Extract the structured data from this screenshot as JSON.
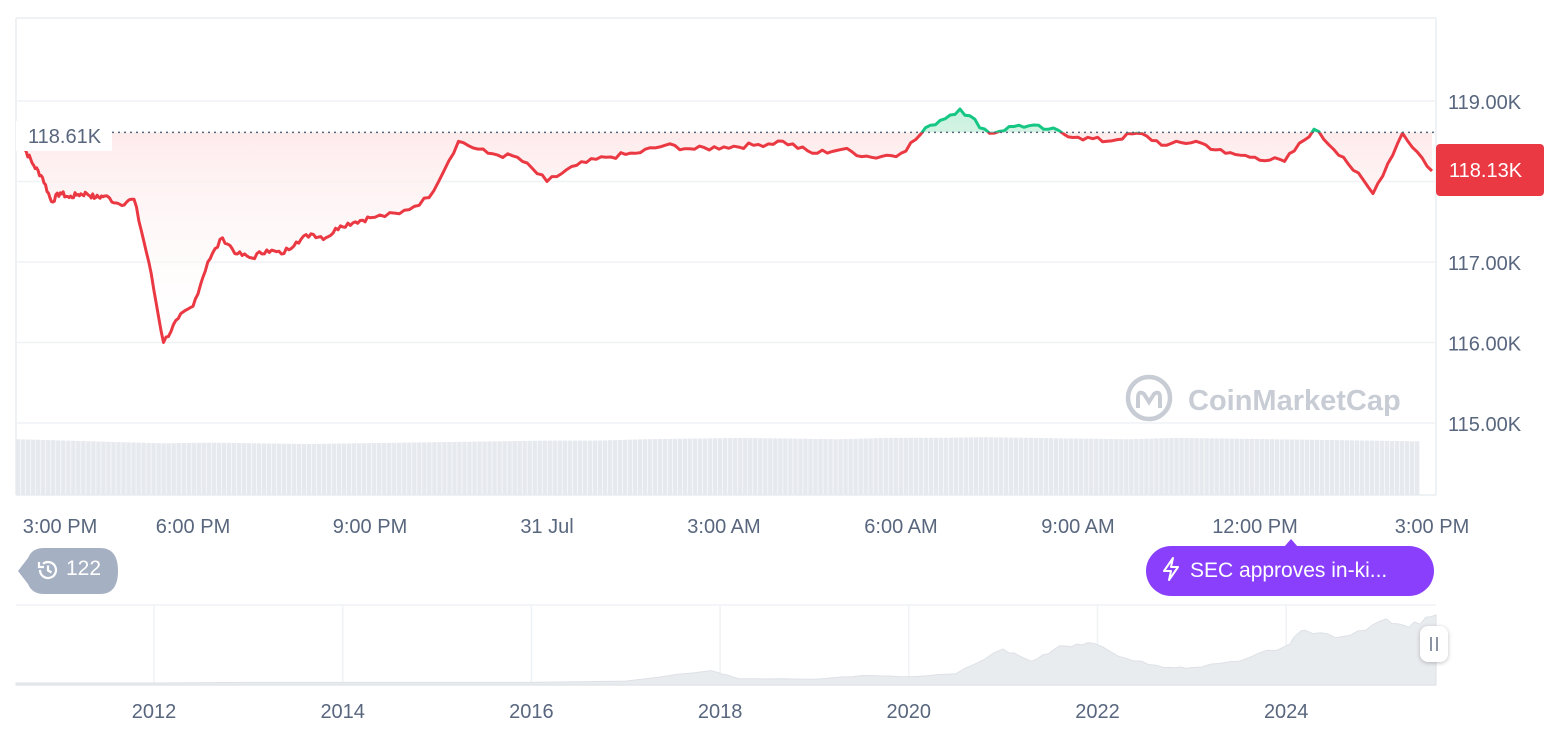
{
  "chart_data": [
    {
      "type": "line",
      "y_axis_ticks": [
        "119.00K",
        "117.00K",
        "116.00K",
        "115.00K"
      ],
      "ylim": [
        115000,
        119500
      ],
      "x_axis_ticks": [
        "3:00 PM",
        "6:00 PM",
        "9:00 PM",
        "31 Jul",
        "3:00 AM",
        "6:00 AM",
        "9:00 AM",
        "12:00 PM",
        "3:00 PM"
      ],
      "reference_label": "118.61K",
      "reference_value": 118610,
      "current_label": "118.13K",
      "current_value": 118130,
      "series": [
        {
          "x": [
            0,
            0.15,
            0.3,
            0.45,
            0.6,
            0.75,
            0.9,
            1.05,
            1.2,
            1.35,
            1.5,
            1.75,
            2.0,
            2.25,
            2.5,
            2.75,
            3.0,
            3.25,
            3.5,
            3.75,
            4.0,
            4.25,
            4.5,
            4.75,
            5.0,
            5.25,
            5.5,
            5.75,
            6.0,
            6.5,
            7.0,
            7.5,
            8.0,
            8.5,
            9.0,
            9.5,
            10.0,
            10.5,
            11.0,
            11.5,
            12.0,
            12.5,
            13.0,
            13.5,
            14.0,
            14.5,
            15.0,
            15.5,
            16.0,
            16.5,
            17.0,
            17.5,
            18.0,
            18.5,
            19.0,
            19.5,
            20.0,
            20.5,
            21.0,
            21.5,
            22.0,
            22.5,
            23.0,
            23.5,
            24.0
          ],
          "values": [
            118640,
            118400,
            118200,
            118050,
            117750,
            117860,
            117800,
            117840,
            117850,
            117800,
            117820,
            117720,
            117780,
            117000,
            116000,
            116300,
            116450,
            117000,
            117300,
            117100,
            117050,
            117150,
            117100,
            117250,
            117350,
            117300,
            117450,
            117500,
            117550,
            117600,
            117800,
            118500,
            118350,
            118300,
            118000,
            118200,
            118300,
            118350,
            118450,
            118400,
            118430,
            118450,
            118500,
            118350,
            118400,
            118300,
            118350,
            118700,
            118900,
            118600,
            118700,
            118650,
            118550,
            118500,
            118600,
            118450,
            118500,
            118350,
            118300,
            118250,
            118650,
            118300,
            117850,
            118600,
            118130
          ]
        }
      ],
      "volume_series": {
        "values": [
          0.82,
          0.8,
          0.78,
          0.76,
          0.77,
          0.76,
          0.75,
          0.76,
          0.77,
          0.78,
          0.79,
          0.8,
          0.8,
          0.82,
          0.83,
          0.84,
          0.83,
          0.82,
          0.84,
          0.84,
          0.85,
          0.84,
          0.83,
          0.82,
          0.84,
          0.83,
          0.82,
          0.81,
          0.8,
          0.79
        ]
      },
      "watermark": "CoinMarketCap"
    },
    {
      "type": "area",
      "x_axis_ticks": [
        "2012",
        "2014",
        "2016",
        "2018",
        "2020",
        "2022",
        "2024"
      ],
      "series": [
        {
          "x": [
            2010.5,
            2012,
            2013,
            2014,
            2015,
            2016,
            2017,
            2017.9,
            2018.2,
            2019,
            2019.5,
            2020,
            2020.5,
            2021,
            2021.3,
            2021.6,
            2021.9,
            2022.3,
            2022.7,
            2023,
            2023.5,
            2024,
            2024.2,
            2024.6,
            2025,
            2025.3,
            2025.6
          ],
          "values": [
            0,
            0,
            0.01,
            0.01,
            0.01,
            0.01,
            0.03,
            0.2,
            0.07,
            0.06,
            0.12,
            0.1,
            0.15,
            0.55,
            0.35,
            0.6,
            0.65,
            0.4,
            0.25,
            0.25,
            0.35,
            0.6,
            0.85,
            0.75,
            1.0,
            0.9,
            1.1
          ]
        }
      ]
    }
  ],
  "history_badge": {
    "count": "122",
    "icon": "history-icon"
  },
  "news_pill": {
    "text": "SEC approves in-ki...",
    "icon": "lightning-icon"
  },
  "range_handle": {
    "icon": "pause-grip-icon"
  },
  "colors": {
    "down_line": "#ea3943",
    "up_line": "#16c784",
    "down_fill": "#fde7e8",
    "up_fill": "#c9f1df",
    "price_tag_bg": "#ea3943",
    "axis_text": "#58667e",
    "grid": "#eff2f5",
    "volume": "#e6e9ee",
    "news_bg": "#8a3ffc",
    "history_bg": "#a6b0c3",
    "watermark": "#c8ccd4"
  }
}
